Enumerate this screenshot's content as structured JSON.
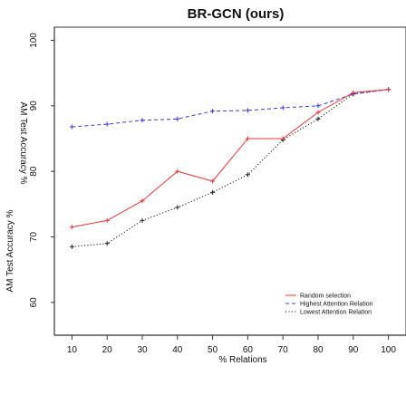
{
  "chart_data": {
    "type": "line",
    "title": "BR-GCN (ours)",
    "xlabel": "% Relations",
    "ylabel": "AM Test Accuracy %",
    "ylabel_mirrored": "AM Test Accuracy %",
    "x": [
      10,
      20,
      30,
      40,
      50,
      60,
      70,
      80,
      90,
      100
    ],
    "xlim": [
      5,
      105
    ],
    "ylim": [
      55,
      102
    ],
    "x_ticks": [
      "10",
      "20",
      "30",
      "40",
      "50",
      "60",
      "70",
      "80",
      "90",
      "100"
    ],
    "y_ticks": [
      "60",
      "70",
      "80",
      "90",
      "100"
    ],
    "y_tick_values": [
      60,
      70,
      80,
      90,
      100
    ],
    "grid": false,
    "legend_position": "bottom-right",
    "series": [
      {
        "name": "Random selection",
        "color": "#e8383d",
        "dash": "solid",
        "values": [
          71.5,
          72.5,
          75.5,
          80.0,
          78.5,
          85.0,
          85.0,
          89.0,
          92.0,
          92.5
        ]
      },
      {
        "name": "Highest Attention Relation",
        "color": "#3b3bd0",
        "dash": "dashed",
        "values": [
          86.8,
          87.2,
          87.8,
          88.0,
          89.2,
          89.3,
          89.7,
          90.0,
          91.8,
          92.5
        ]
      },
      {
        "name": "Lowest Attention Relation",
        "color": "#222222",
        "dash": "dotted",
        "values": [
          68.5,
          69.0,
          72.5,
          74.5,
          76.8,
          79.5,
          84.8,
          88.0,
          91.8,
          92.5
        ]
      }
    ]
  }
}
